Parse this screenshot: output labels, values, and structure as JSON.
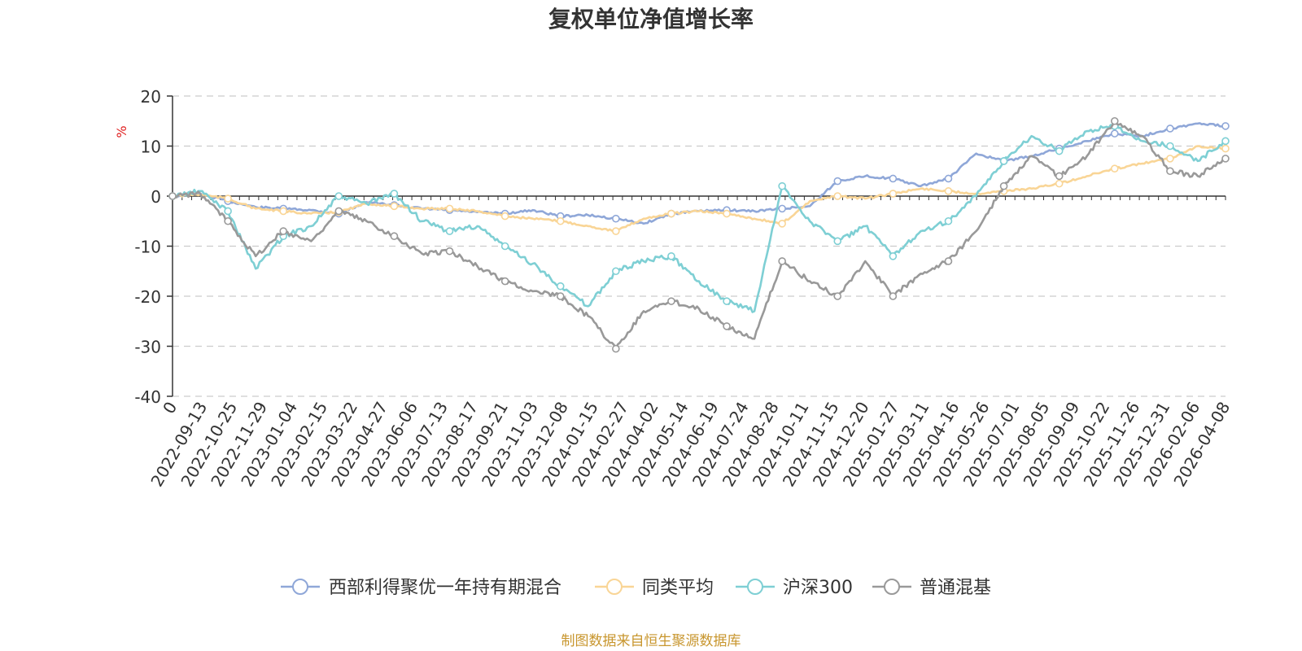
{
  "chart_data": {
    "type": "line",
    "title": "复权单位净值增长率",
    "ylabel": "%",
    "ylim": [
      -40,
      20
    ],
    "yticks": [
      20,
      10,
      0,
      -10,
      -20,
      -30,
      -40
    ],
    "xticks": [
      "0",
      "2022-09-13",
      "2022-10-25",
      "2022-11-29",
      "2023-01-04",
      "2023-02-15",
      "2023-03-22",
      "2023-04-27",
      "2023-06-06",
      "2023-07-13",
      "2023-08-17",
      "2023-09-21",
      "2023-11-03",
      "2023-12-08",
      "2024-01-15",
      "2024-02-27",
      "2024-04-02",
      "2024-05-14",
      "2024-06-19",
      "2024-07-24",
      "2024-08-28",
      "2024-10-11",
      "2024-11-15",
      "2024-12-20",
      "2025-01-27",
      "2025-03-11",
      "2025-04-16",
      "2025-05-26",
      "2025-07-01",
      "2025-08-05",
      "2025-09-09",
      "2025-10-22",
      "2025-11-26",
      "2025-12-31",
      "2026-02-06",
      "2026-04-08"
    ],
    "grid": "dashed horizontal",
    "legend_position": "bottom-center",
    "series": [
      {
        "name": "西部利得聚优一年持有期混合",
        "color": "#8fa7d8",
        "values": [
          0,
          0.5,
          -1,
          -2.2,
          -2.5,
          -2.8,
          -3.5,
          -1.2,
          -1.8,
          -2.5,
          -2.8,
          -3.2,
          -3.5,
          -2.8,
          -4.0,
          -3.8,
          -4.5,
          -5.5,
          -3.5,
          -3.0,
          -2.8,
          -3.0,
          -2.5,
          -2.0,
          3.0,
          4.0,
          3.5,
          2.0,
          3.5,
          8.5,
          7.0,
          8.0,
          9.5,
          11.0,
          12.5,
          12.0,
          13.5,
          14.5,
          14.0
        ]
      },
      {
        "name": "同类平均",
        "color": "#f9d596",
        "values": [
          0,
          0.3,
          -0.5,
          -2.5,
          -3.0,
          -3.5,
          -3.2,
          -1.5,
          -2.0,
          -2.5,
          -2.5,
          -3.0,
          -4.0,
          -4.5,
          -5.0,
          -6.0,
          -7.0,
          -4.5,
          -3.5,
          -3.0,
          -3.5,
          -4.5,
          -5.5,
          -1.0,
          0,
          -0.5,
          0.5,
          1.5,
          1.0,
          0.5,
          1.0,
          1.5,
          2.5,
          4.0,
          5.5,
          6.5,
          7.5,
          10.0,
          9.5
        ]
      },
      {
        "name": "沪深300",
        "color": "#7ecfd4",
        "values": [
          0,
          1.0,
          -3.0,
          -14.5,
          -8.0,
          -6.0,
          0,
          -1.5,
          0.5,
          -5.0,
          -7.0,
          -6.0,
          -10.0,
          -13.5,
          -18.0,
          -22.0,
          -15.0,
          -13.0,
          -12.0,
          -17.0,
          -21.0,
          -23.0,
          2.0,
          -5.0,
          -9.0,
          -6.0,
          -12.0,
          -7.0,
          -5.0,
          0,
          7.0,
          12.0,
          9.0,
          13.0,
          14.0,
          11.0,
          10.0,
          7.0,
          11.0
        ]
      },
      {
        "name": "普通混基",
        "color": "#999999",
        "values": [
          0,
          0.5,
          -5.0,
          -12.0,
          -7.0,
          -9.0,
          -3.0,
          -5.0,
          -8.0,
          -11.5,
          -11.0,
          -14.0,
          -17.0,
          -19.0,
          -20.0,
          -24.0,
          -30.5,
          -23.0,
          -21.0,
          -22.5,
          -26.0,
          -28.5,
          -13.0,
          -17.0,
          -20.0,
          -13.0,
          -20.0,
          -15.5,
          -13.0,
          -7.0,
          2.0,
          8.0,
          4.0,
          8.0,
          15.0,
          12.0,
          5.0,
          4.0,
          7.5
        ]
      }
    ]
  },
  "footer": {
    "source": "制图数据来自恒生聚源数据库"
  }
}
